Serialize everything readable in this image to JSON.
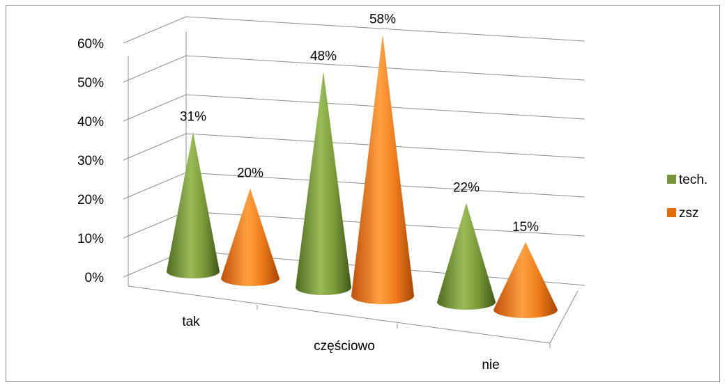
{
  "chart_data": {
    "type": "bar",
    "subtype": "3d-cone",
    "categories": [
      "tak",
      "częściowo",
      "nie"
    ],
    "series": [
      {
        "name": "tech.",
        "values": [
          31,
          48,
          22
        ],
        "labels": [
          "31%",
          "48%",
          "22%"
        ],
        "color": "#76933C"
      },
      {
        "name": "zsz",
        "values": [
          20,
          58,
          15
        ],
        "labels": [
          "20%",
          "58%",
          "15%"
        ],
        "color": "#E46C0A"
      }
    ],
    "ylim": [
      0,
      60
    ],
    "yticks": [
      "0%",
      "10%",
      "20%",
      "30%",
      "40%",
      "50%",
      "60%"
    ],
    "grid": true,
    "legend": "right"
  }
}
